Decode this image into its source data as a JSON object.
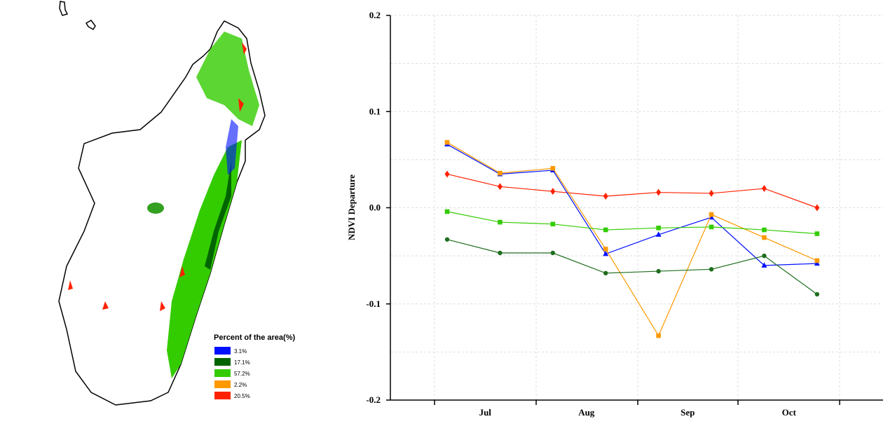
{
  "map": {
    "legend": {
      "title": "Percent of the area(%)",
      "items": [
        {
          "label": "3.1%",
          "color": "#0010ff"
        },
        {
          "label": "17.1%",
          "color": "#006400"
        },
        {
          "label": "57.2%",
          "color": "#33cc00"
        },
        {
          "label": "2.2%",
          "color": "#ff9900"
        },
        {
          "label": "20.5%",
          "color": "#ff2200"
        }
      ]
    }
  },
  "chart_data": {
    "type": "line",
    "y_label": "NDVI Departure",
    "categories": [
      "Jul",
      null,
      "Aug",
      null,
      "Sep",
      null,
      "Oct",
      null
    ],
    "ylim": [
      -0.2,
      0.2
    ],
    "yticks": [
      -0.2,
      -0.1,
      {
        "value": 0,
        "label": "0.0"
      },
      0.1,
      0.2
    ],
    "minor_yticks": [
      -0.15,
      -0.05,
      0.05,
      0.15
    ],
    "grid": true,
    "series": [
      {
        "color": "#ff2200",
        "marker": "diamond",
        "values": [
          0.035,
          0.022,
          0.017,
          0.012,
          0.016,
          0.015,
          0.02,
          0
        ]
      },
      {
        "color": "#0010ff",
        "marker": "triangle",
        "values": [
          0.066,
          0.035,
          0.039,
          -0.048,
          -0.028,
          -0.01,
          -0.06,
          -0.058
        ]
      },
      {
        "color": "#ff9900",
        "marker": "square",
        "values": [
          0.068,
          0.036,
          0.041,
          -0.043,
          -0.133,
          -0.007,
          -0.031,
          -0.055
        ]
      },
      {
        "color": "#33cc00",
        "marker": "square",
        "values": [
          -0.004,
          -0.015,
          -0.017,
          -0.023,
          -0.021,
          -0.02,
          -0.023,
          -0.027
        ]
      },
      {
        "color": "#1e6e1e",
        "marker": "circle",
        "values": [
          -0.033,
          -0.047,
          -0.047,
          -0.068,
          -0.066,
          -0.064,
          -0.05,
          -0.09
        ]
      }
    ]
  }
}
